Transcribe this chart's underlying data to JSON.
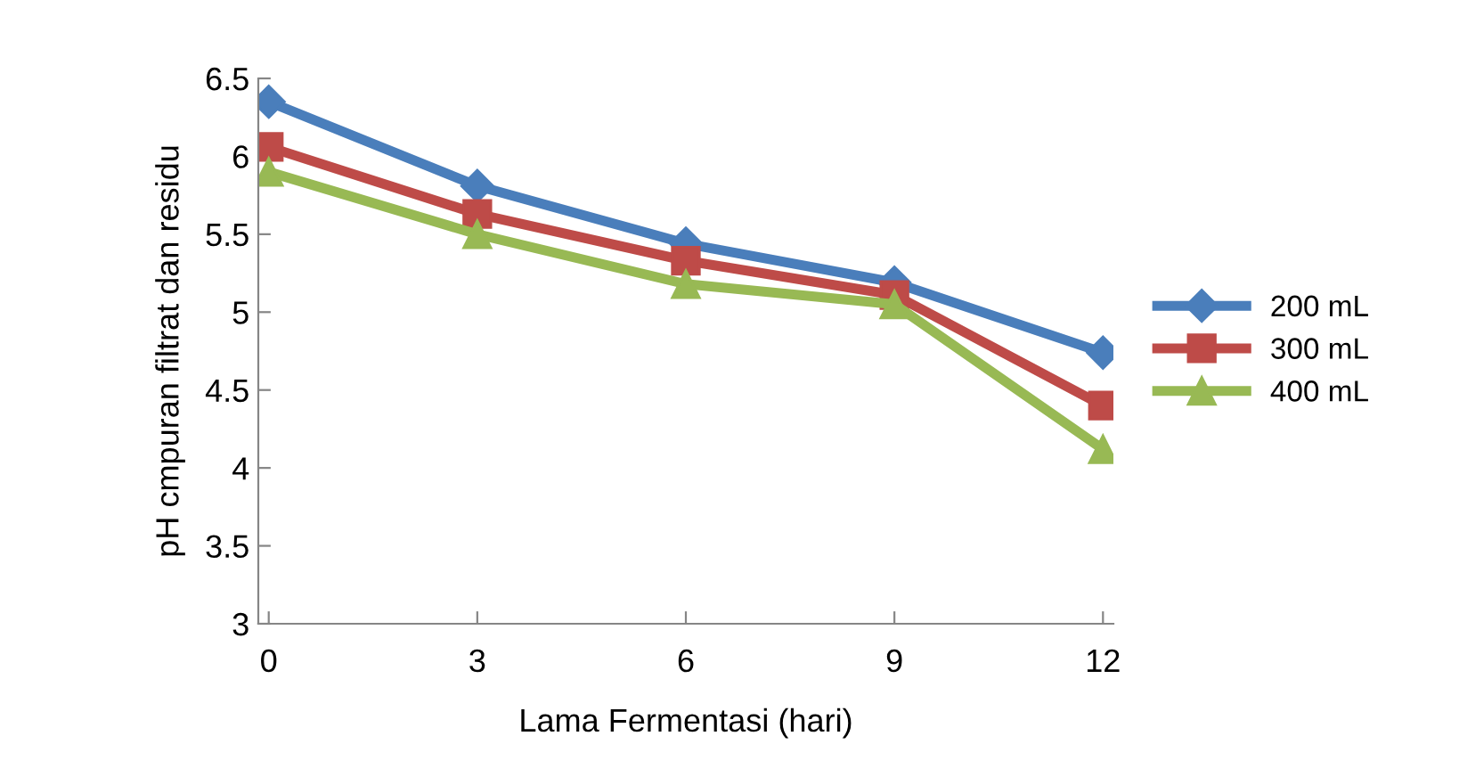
{
  "chart_data": {
    "type": "line",
    "xlabel": "Lama Fermentasi (hari)",
    "ylabel": "pH cmpuran filtrat dan residu",
    "categories": [
      "0",
      "3",
      "6",
      "9",
      "12"
    ],
    "ylim": [
      3,
      6.5
    ],
    "yticks": [
      3,
      3.5,
      4,
      4.5,
      5,
      5.5,
      6,
      6.5
    ],
    "grid": false,
    "legend": "right",
    "line_style": "solid",
    "series": [
      {
        "name": "200 mL",
        "color": "#4a7ebb",
        "marker": "diamond",
        "values": [
          6.35,
          5.81,
          5.44,
          5.19,
          4.74
        ]
      },
      {
        "name": "300 mL",
        "color": "#be4b48",
        "marker": "square",
        "values": [
          6.06,
          5.63,
          5.33,
          5.11,
          4.4
        ]
      },
      {
        "name": "400 mL",
        "color": "#98b954",
        "marker": "triangle",
        "values": [
          5.9,
          5.5,
          5.18,
          5.05,
          4.12
        ]
      }
    ]
  }
}
